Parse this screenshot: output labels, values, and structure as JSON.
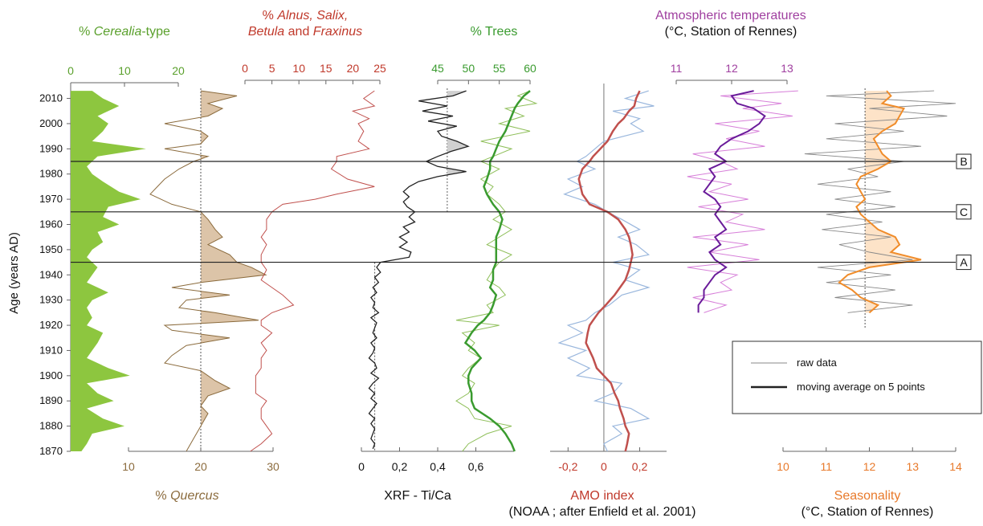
{
  "colors": {
    "cerealia": "#8dc63f",
    "quercus": "#8b6b3d",
    "quercus_fill": "#dcc4a8",
    "alnus": "#c0504d",
    "xrf": "#222222",
    "xrf_fill": "#d0d0d0",
    "trees_raw": "#8fbf5a",
    "trees_avg": "#3a9b2f",
    "amo": "#c0504d",
    "amo_raw": "#9ab7dd",
    "temp_raw": "#d77fd9",
    "temp_avg": "#6a1b9a",
    "season": "#f08c2a",
    "season_raw": "#888888",
    "season_fill": "#fde3c8",
    "green_text": "#5aa02c",
    "brown_text": "#8b6b3d",
    "red_text": "#c0392b",
    "purple_text": "#a040a0",
    "orange_text": "#e8792a"
  },
  "chart_data": {
    "type": "line",
    "ylabel": "Age (years AD)",
    "ylim": [
      1870,
      2014
    ],
    "yticks": [
      1870,
      1880,
      1890,
      1900,
      1910,
      1920,
      1930,
      1940,
      1950,
      1960,
      1970,
      1980,
      1990,
      2000,
      2010
    ],
    "horizons": [
      {
        "label": "B",
        "year": 1985
      },
      {
        "label": "C",
        "year": 1965
      },
      {
        "label": "A",
        "year": 1945
      }
    ],
    "panels": [
      {
        "id": "cerealia",
        "title_prefix": "% ",
        "title_italic": "Cerealia",
        "title_suffix": "-type",
        "axis_position": "top",
        "xlim": [
          0,
          20
        ],
        "xticks": [
          "0",
          "10",
          "20"
        ],
        "years": [
          2013,
          2010,
          2007,
          2003,
          2000,
          1997,
          1993,
          1990,
          1987,
          1983,
          1980,
          1977,
          1973,
          1970,
          1967,
          1963,
          1960,
          1957,
          1953,
          1950,
          1947,
          1943,
          1940,
          1937,
          1933,
          1930,
          1927,
          1923,
          1920,
          1917,
          1913,
          1910,
          1907,
          1903,
          1900,
          1897,
          1893,
          1890,
          1887,
          1883,
          1880,
          1877,
          1873,
          1870
        ],
        "values": [
          4,
          6,
          9,
          5,
          7,
          6,
          4,
          14,
          5,
          3,
          4,
          6,
          9,
          13,
          7,
          6,
          9,
          5,
          6,
          4,
          3,
          5,
          4,
          3,
          7,
          4,
          3,
          4,
          3,
          6,
          5,
          4,
          3,
          7,
          11,
          3,
          5,
          8,
          3,
          6,
          10,
          4,
          3,
          2
        ]
      },
      {
        "id": "quercus",
        "title_prefix": "% ",
        "title_italic": "Quercus",
        "title_suffix": "",
        "axis_position": "bottom",
        "xlim": [
          10,
          30
        ],
        "xticks": [
          "10",
          "20",
          "30"
        ],
        "reference": 20,
        "years": [
          2013,
          2011,
          2008,
          2006,
          2003,
          2000,
          1997,
          1995,
          1992,
          1990,
          1987,
          1985,
          1982,
          1978,
          1975,
          1972,
          1968,
          1965,
          1962,
          1958,
          1955,
          1952,
          1948,
          1945,
          1943,
          1940,
          1937,
          1935,
          1932,
          1930,
          1927,
          1925,
          1922,
          1920,
          1918,
          1915,
          1912,
          1908,
          1905,
          1902,
          1898,
          1895,
          1892,
          1888,
          1885,
          1880,
          1875,
          1870
        ],
        "values": [
          20,
          25,
          21,
          23,
          21,
          15,
          20,
          21,
          20,
          15,
          21,
          19,
          17,
          15,
          14,
          13,
          16,
          20,
          21,
          22,
          23,
          21,
          24,
          25,
          27,
          29,
          20,
          16,
          24,
          18,
          17,
          22,
          28,
          15,
          16,
          24,
          18,
          16,
          15,
          20,
          22,
          24,
          21,
          20,
          21,
          20,
          19,
          18
        ]
      },
      {
        "id": "alnus",
        "title_line1_italic": "Alnus, Salix,",
        "title_line1_prefix": "% ",
        "title_line2_italic": "Betula",
        "title_line2_mid": " and ",
        "title_line2_italic2": "Fraxinus",
        "axis_position": "top",
        "xlim": [
          0,
          25
        ],
        "xticks": [
          "0",
          "5",
          "10",
          "15",
          "20",
          "25"
        ],
        "years": [
          2013,
          2010,
          2007,
          2005,
          2002,
          2000,
          1997,
          1993,
          1990,
          1987,
          1985,
          1982,
          1978,
          1975,
          1972,
          1970,
          1968,
          1965,
          1962,
          1958,
          1955,
          1952,
          1948,
          1945,
          1942,
          1938,
          1935,
          1932,
          1928,
          1925,
          1922,
          1920,
          1917,
          1913,
          1910,
          1907,
          1903,
          1900,
          1897,
          1893,
          1890,
          1887,
          1883,
          1880,
          1877,
          1873,
          1870
        ],
        "values": [
          24,
          22,
          24,
          20,
          23,
          21,
          22,
          21,
          23,
          17,
          17,
          16,
          19,
          24,
          17,
          13,
          7,
          5,
          4,
          4,
          3,
          4,
          3,
          3,
          4,
          3,
          5,
          7,
          9,
          5,
          3,
          3,
          5,
          3,
          4,
          3,
          3,
          2,
          2,
          2,
          4,
          3,
          3,
          4,
          5,
          3,
          1
        ]
      },
      {
        "id": "xrf",
        "title": "XRF - Ti/Ca",
        "axis_position": "bottom",
        "xlim": [
          0,
          0.8
        ],
        "xticks": [
          "0",
          "0,2",
          "0,4",
          "0,6"
        ],
        "reference": 0.45,
        "reference_old": 0.07,
        "years": [
          2013,
          2011,
          2009,
          2007,
          2005,
          2003,
          2001,
          1999,
          1997,
          1995,
          1993,
          1991,
          1989,
          1987,
          1985,
          1983,
          1981,
          1979,
          1977,
          1975,
          1973,
          1971,
          1969,
          1967,
          1965,
          1963,
          1961,
          1959,
          1957,
          1955,
          1953,
          1951,
          1949,
          1947,
          1945,
          1943,
          1941,
          1939,
          1937,
          1935,
          1933,
          1931,
          1929,
          1927,
          1925,
          1923,
          1921,
          1919,
          1917,
          1915,
          1913,
          1911,
          1909,
          1907,
          1905,
          1903,
          1901,
          1899,
          1897,
          1895,
          1893,
          1891,
          1889,
          1887,
          1885,
          1883,
          1881,
          1879,
          1877,
          1875,
          1873,
          1871
        ],
        "values": [
          0.55,
          0.48,
          0.3,
          0.45,
          0.32,
          0.48,
          0.35,
          0.5,
          0.4,
          0.42,
          0.5,
          0.56,
          0.47,
          0.4,
          0.34,
          0.4,
          0.55,
          0.4,
          0.3,
          0.25,
          0.22,
          0.25,
          0.22,
          0.24,
          0.28,
          0.25,
          0.28,
          0.22,
          0.25,
          0.2,
          0.24,
          0.2,
          0.26,
          0.25,
          0.1,
          0.08,
          0.1,
          0.07,
          0.09,
          0.06,
          0.08,
          0.05,
          0.07,
          0.06,
          0.09,
          0.05,
          0.08,
          0.07,
          0.06,
          0.08,
          0.05,
          0.07,
          0.06,
          0.04,
          0.07,
          0.08,
          0.05,
          0.09,
          0.06,
          0.04,
          0.07,
          0.05,
          0.08,
          0.06,
          0.04,
          0.07,
          0.05,
          0.07,
          0.06,
          0.05,
          0.07,
          0.06
        ]
      },
      {
        "id": "trees",
        "title": "% Trees",
        "axis_position": "top",
        "xlim": [
          45,
          60
        ],
        "xticks": [
          "45",
          "50",
          "55",
          "60"
        ],
        "years": [
          2013,
          2011,
          2008,
          2006,
          2003,
          2000,
          1997,
          1993,
          1990,
          1987,
          1985,
          1982,
          1978,
          1975,
          1972,
          1968,
          1965,
          1962,
          1958,
          1955,
          1952,
          1948,
          1945,
          1942,
          1938,
          1935,
          1932,
          1928,
          1925,
          1922,
          1920,
          1917,
          1913,
          1910,
          1907,
          1903,
          1900,
          1897,
          1893,
          1890,
          1887,
          1883,
          1880,
          1877,
          1873,
          1870
        ],
        "raw": [
          60,
          58,
          61,
          56,
          59,
          55,
          60,
          52,
          57,
          54,
          52,
          55,
          52,
          54,
          53,
          55,
          56,
          54,
          57,
          55,
          53,
          57,
          55,
          54,
          53,
          55,
          56,
          53,
          54,
          48,
          55,
          49,
          51,
          50,
          52,
          50,
          49,
          51,
          50,
          48,
          50,
          51,
          57,
          53,
          50,
          49
        ],
        "avg": [
          60,
          59,
          58,
          57.5,
          57,
          56.5,
          56,
          55,
          54.5,
          54,
          53.5,
          53.5,
          53,
          52.5,
          53,
          54,
          55,
          55.5,
          55,
          54.5,
          54.5,
          54.5,
          54.5,
          54,
          54,
          53.5,
          54.5,
          54,
          53.5,
          52.5,
          51.5,
          50.5,
          49.5,
          51,
          52,
          50.5,
          50,
          50,
          50.5,
          50.5,
          51,
          53.5,
          55,
          56,
          57,
          57.5
        ]
      },
      {
        "id": "amo",
        "title": "AMO index",
        "subtitle": "(NOAA ; after Enfield et al. 2001)",
        "axis_position": "bottom",
        "xlim": [
          -0.3,
          0.35
        ],
        "xticks": [
          "-0,2",
          "0",
          "0,2"
        ],
        "years": [
          2013,
          2010,
          2007,
          2005,
          2002,
          2000,
          1997,
          1993,
          1990,
          1987,
          1985,
          1982,
          1978,
          1975,
          1972,
          1968,
          1965,
          1962,
          1958,
          1955,
          1952,
          1948,
          1945,
          1942,
          1938,
          1935,
          1932,
          1928,
          1925,
          1922,
          1920,
          1917,
          1913,
          1910,
          1907,
          1903,
          1900,
          1897,
          1893,
          1890,
          1887,
          1883,
          1880,
          1877,
          1873,
          1870
        ],
        "raw": [
          0.25,
          0.12,
          0.28,
          0.05,
          0.2,
          0.15,
          0.22,
          0.0,
          -0.05,
          -0.1,
          -0.15,
          -0.05,
          -0.2,
          -0.12,
          -0.22,
          -0.05,
          0.02,
          0.1,
          0.2,
          0.08,
          0.18,
          0.25,
          0.05,
          0.2,
          0.12,
          0.25,
          0.1,
          0.03,
          -0.05,
          -0.1,
          -0.2,
          -0.12,
          -0.25,
          -0.1,
          -0.2,
          -0.08,
          -0.15,
          0.1,
          0.05,
          -0.05,
          0.15,
          0.25,
          0.05,
          0.1,
          0.0,
          0.02
        ],
        "avg": [
          0.2,
          0.18,
          0.17,
          0.14,
          0.11,
          0.08,
          0.05,
          0.02,
          -0.02,
          -0.06,
          -0.08,
          -0.12,
          -0.14,
          -0.13,
          -0.12,
          -0.08,
          0.02,
          0.08,
          0.12,
          0.14,
          0.15,
          0.16,
          0.15,
          0.14,
          0.12,
          0.09,
          0.06,
          0.01,
          -0.03,
          -0.06,
          -0.08,
          -0.09,
          -0.1,
          -0.08,
          -0.06,
          -0.04,
          0.0,
          0.04,
          0.06,
          0.08,
          0.09,
          0.11,
          0.12,
          0.14,
          0.13,
          0.12
        ]
      },
      {
        "id": "temperature",
        "title": "Atmospheric temperatures",
        "subtitle": "(°C, Station of Rennes)",
        "axis_position": "top",
        "xlim": [
          11,
          13
        ],
        "xticks": [
          "11",
          "12",
          "13"
        ],
        "years": [
          2013,
          2011,
          2008,
          2006,
          2003,
          2000,
          1997,
          1994,
          1991,
          1988,
          1985,
          1982,
          1979,
          1976,
          1973,
          1970,
          1967,
          1964,
          1961,
          1958,
          1955,
          1952,
          1949,
          1946,
          1943,
          1940,
          1937,
          1934,
          1931,
          1928,
          1925
        ],
        "raw": [
          13.2,
          11.8,
          12.9,
          12.2,
          13.1,
          11.7,
          12.5,
          11.9,
          12.6,
          11.3,
          11.8,
          12.1,
          11.2,
          12.0,
          11.6,
          12.3,
          11.4,
          12.2,
          11.9,
          12.6,
          11.3,
          12.3,
          11.6,
          12.5,
          11.2,
          12.1,
          11.8,
          12.0,
          11.3,
          11.9,
          11.5
        ],
        "avg": [
          12.4,
          12.0,
          12.1,
          12.4,
          12.6,
          12.5,
          12.3,
          12.0,
          11.8,
          11.7,
          11.9,
          11.6,
          11.7,
          11.6,
          11.5,
          11.7,
          11.8,
          11.7,
          11.8,
          11.9,
          11.7,
          11.8,
          11.6,
          11.7,
          11.9,
          11.7,
          11.6,
          11.5,
          11.5,
          11.4,
          11.4
        ]
      },
      {
        "id": "seasonality",
        "title": "Seasonality",
        "subtitle": "(°C, Station of Rennes)",
        "axis_position": "bottom",
        "xlim": [
          10,
          14
        ],
        "xticks": [
          "10",
          "11",
          "12",
          "13",
          "14"
        ],
        "reference": 11.9,
        "years": [
          2013,
          2011,
          2008,
          2006,
          2003,
          2000,
          1997,
          1994,
          1991,
          1988,
          1985,
          1982,
          1979,
          1976,
          1973,
          1970,
          1967,
          1964,
          1961,
          1958,
          1955,
          1952,
          1949,
          1946,
          1943,
          1940,
          1937,
          1934,
          1931,
          1928,
          1925
        ],
        "raw": [
          13.5,
          11.0,
          14.0,
          12.0,
          13.8,
          11.2,
          12.8,
          11.0,
          13.2,
          10.5,
          12.8,
          11.5,
          12.2,
          10.8,
          12.5,
          11.2,
          12.6,
          11.0,
          12.3,
          10.9,
          12.5,
          11.3,
          12.0,
          13.0,
          10.8,
          12.5,
          11.0,
          12.6,
          11.2,
          13.0,
          11.5
        ],
        "avg": [
          12.4,
          12.5,
          12.3,
          12.8,
          12.7,
          12.6,
          12.3,
          12.1,
          12.2,
          12.3,
          12.5,
          12.2,
          11.8,
          11.7,
          11.8,
          11.9,
          11.7,
          11.8,
          12.0,
          12.2,
          12.6,
          12.7,
          12.5,
          13.2,
          12.0,
          11.5,
          11.3,
          11.6,
          11.8,
          12.2,
          12.0
        ]
      }
    ]
  },
  "legend": {
    "raw_label": "raw data",
    "avg_label": "moving average on 5 points"
  }
}
